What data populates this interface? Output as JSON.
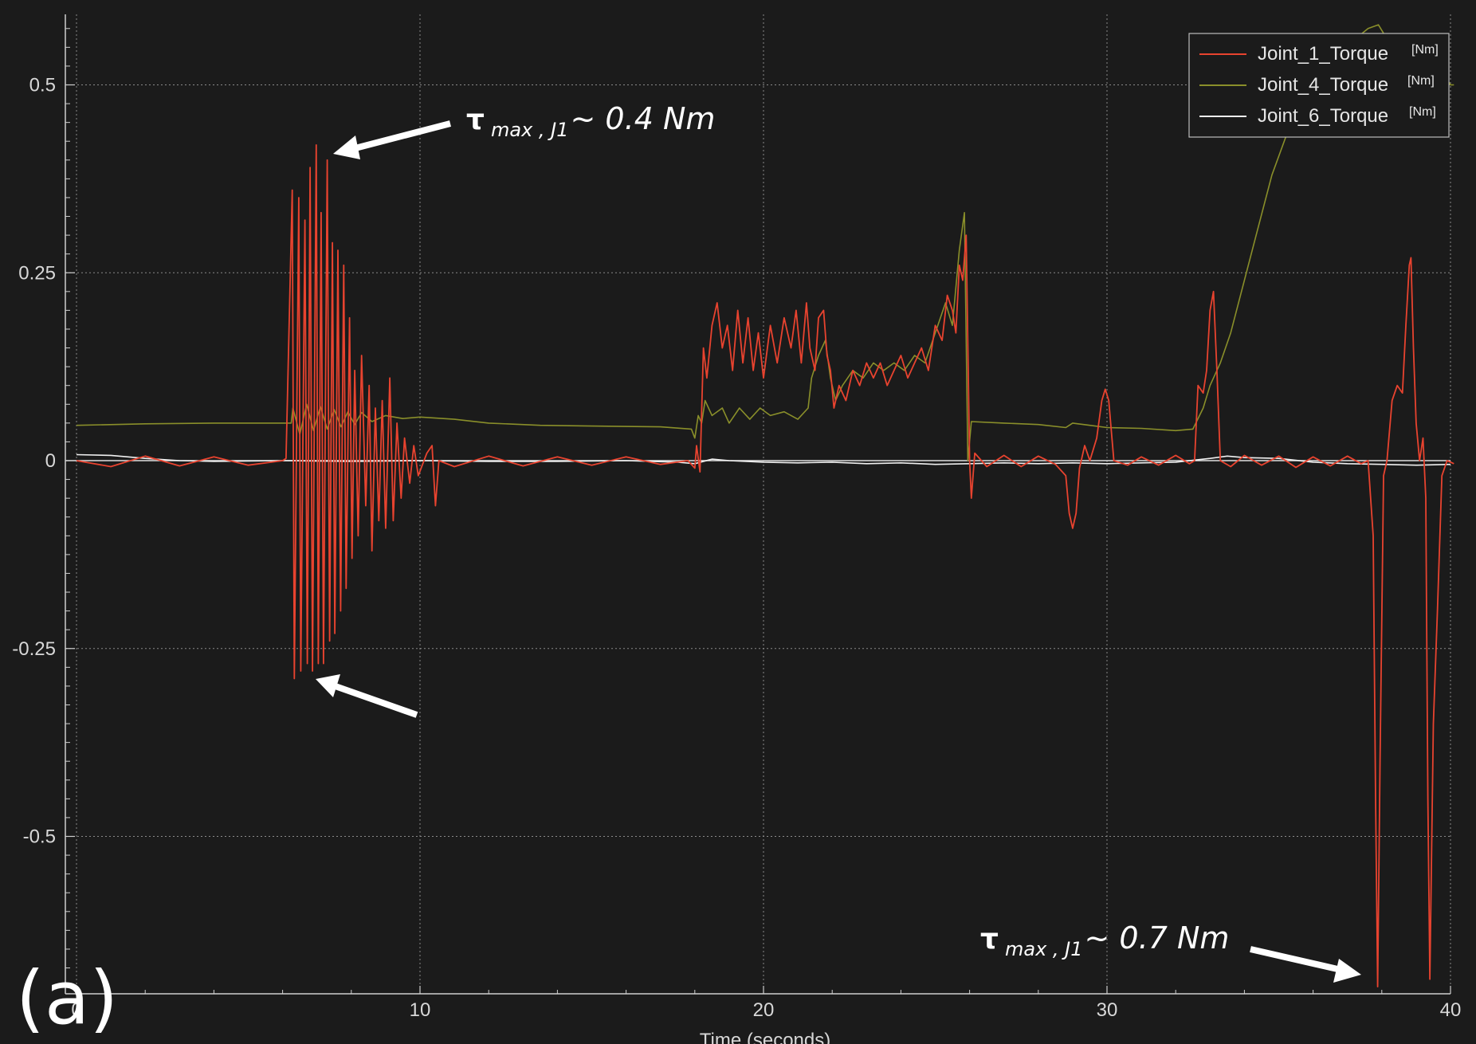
{
  "chart_data": {
    "type": "line",
    "xlabel": "Time (seconds)",
    "xlim": [
      -0.4,
      40.6
    ],
    "ylim": [
      -0.7,
      0.59
    ],
    "x_ticks": [
      0,
      10,
      20,
      30,
      40
    ],
    "x_tick_labels": [
      "0",
      "10",
      "20",
      "30",
      "40"
    ],
    "y_ticks": [
      0.5,
      0.25,
      0,
      -0.25,
      -0.5
    ],
    "y_tick_labels": [
      "0.5",
      "0.25",
      "0",
      "-0.25",
      "-0.5"
    ],
    "grid": true,
    "legend_position": "top-right",
    "series": [
      {
        "name": "Joint_1_Torque",
        "unit": "[Nm]",
        "color": "#e8432f",
        "points": [
          [
            0,
            0.0
          ],
          [
            1,
            -0.008
          ],
          [
            2,
            0.006
          ],
          [
            3,
            -0.007
          ],
          [
            4,
            0.005
          ],
          [
            5,
            -0.006
          ],
          [
            6,
            0.0
          ],
          [
            6.1,
            0.003
          ],
          [
            6.28,
            0.36
          ],
          [
            6.34,
            -0.29
          ],
          [
            6.47,
            0.35
          ],
          [
            6.53,
            -0.28
          ],
          [
            6.65,
            0.32
          ],
          [
            6.72,
            -0.27
          ],
          [
            6.8,
            0.39
          ],
          [
            6.87,
            -0.28
          ],
          [
            6.98,
            0.42
          ],
          [
            7.04,
            -0.27
          ],
          [
            7.12,
            0.33
          ],
          [
            7.19,
            -0.27
          ],
          [
            7.3,
            0.4
          ],
          [
            7.37,
            -0.24
          ],
          [
            7.45,
            0.29
          ],
          [
            7.52,
            -0.23
          ],
          [
            7.61,
            0.28
          ],
          [
            7.69,
            -0.2
          ],
          [
            7.78,
            0.26
          ],
          [
            7.85,
            -0.17
          ],
          [
            7.95,
            0.19
          ],
          [
            8.02,
            -0.13
          ],
          [
            8.1,
            0.12
          ],
          [
            8.2,
            -0.1
          ],
          [
            8.3,
            0.14
          ],
          [
            8.42,
            -0.06
          ],
          [
            8.52,
            0.1
          ],
          [
            8.6,
            -0.12
          ],
          [
            8.7,
            0.07
          ],
          [
            8.8,
            -0.08
          ],
          [
            8.9,
            0.08
          ],
          [
            9.0,
            -0.09
          ],
          [
            9.12,
            0.11
          ],
          [
            9.22,
            -0.08
          ],
          [
            9.33,
            0.05
          ],
          [
            9.45,
            -0.05
          ],
          [
            9.55,
            0.03
          ],
          [
            9.7,
            -0.03
          ],
          [
            9.82,
            0.02
          ],
          [
            9.95,
            -0.02
          ],
          [
            10.2,
            0.01
          ],
          [
            10.35,
            0.02
          ],
          [
            10.45,
            -0.06
          ],
          [
            10.55,
            0.0
          ],
          [
            11,
            -0.008
          ],
          [
            12,
            0.006
          ],
          [
            13,
            -0.007
          ],
          [
            14,
            0.005
          ],
          [
            15,
            -0.006
          ],
          [
            16,
            0.005
          ],
          [
            17,
            -0.005
          ],
          [
            17.8,
            0.0
          ],
          [
            18.0,
            -0.01
          ],
          [
            18.05,
            0.02
          ],
          [
            18.15,
            -0.015
          ],
          [
            18.25,
            0.15
          ],
          [
            18.35,
            0.11
          ],
          [
            18.5,
            0.18
          ],
          [
            18.65,
            0.21
          ],
          [
            18.8,
            0.15
          ],
          [
            18.95,
            0.18
          ],
          [
            19.1,
            0.12
          ],
          [
            19.25,
            0.2
          ],
          [
            19.4,
            0.13
          ],
          [
            19.55,
            0.19
          ],
          [
            19.7,
            0.12
          ],
          [
            19.85,
            0.17
          ],
          [
            20.0,
            0.11
          ],
          [
            20.2,
            0.18
          ],
          [
            20.4,
            0.13
          ],
          [
            20.6,
            0.19
          ],
          [
            20.8,
            0.15
          ],
          [
            20.95,
            0.2
          ],
          [
            21.1,
            0.13
          ],
          [
            21.25,
            0.21
          ],
          [
            21.35,
            0.15
          ],
          [
            21.5,
            0.12
          ],
          [
            21.6,
            0.19
          ],
          [
            21.75,
            0.2
          ],
          [
            21.85,
            0.14
          ],
          [
            21.95,
            0.12
          ],
          [
            22.05,
            0.07
          ],
          [
            22.2,
            0.1
          ],
          [
            22.4,
            0.08
          ],
          [
            22.6,
            0.12
          ],
          [
            22.8,
            0.1
          ],
          [
            23.0,
            0.13
          ],
          [
            23.2,
            0.11
          ],
          [
            23.4,
            0.13
          ],
          [
            23.6,
            0.1
          ],
          [
            23.8,
            0.12
          ],
          [
            24.0,
            0.14
          ],
          [
            24.2,
            0.11
          ],
          [
            24.4,
            0.13
          ],
          [
            24.6,
            0.15
          ],
          [
            24.8,
            0.12
          ],
          [
            25.0,
            0.18
          ],
          [
            25.2,
            0.16
          ],
          [
            25.35,
            0.22
          ],
          [
            25.5,
            0.2
          ],
          [
            25.6,
            0.17
          ],
          [
            25.7,
            0.26
          ],
          [
            25.8,
            0.24
          ],
          [
            25.9,
            0.3
          ],
          [
            26.0,
            0.0
          ],
          [
            26.05,
            -0.05
          ],
          [
            26.15,
            0.01
          ],
          [
            26.5,
            -0.008
          ],
          [
            27,
            0.007
          ],
          [
            27.5,
            -0.008
          ],
          [
            28,
            0.006
          ],
          [
            28.5,
            -0.005
          ],
          [
            28.8,
            -0.02
          ],
          [
            28.9,
            -0.07
          ],
          [
            29.0,
            -0.09
          ],
          [
            29.1,
            -0.07
          ],
          [
            29.2,
            -0.01
          ],
          [
            29.35,
            0.02
          ],
          [
            29.5,
            0.0
          ],
          [
            29.7,
            0.03
          ],
          [
            29.85,
            0.08
          ],
          [
            29.95,
            0.095
          ],
          [
            30.05,
            0.08
          ],
          [
            30.2,
            0.0
          ],
          [
            30.6,
            -0.006
          ],
          [
            31,
            0.005
          ],
          [
            31.5,
            -0.006
          ],
          [
            32,
            0.007
          ],
          [
            32.4,
            -0.004
          ],
          [
            32.55,
            0.0
          ],
          [
            32.65,
            0.1
          ],
          [
            32.8,
            0.09
          ],
          [
            32.9,
            0.12
          ],
          [
            33.0,
            0.2
          ],
          [
            33.1,
            0.225
          ],
          [
            33.2,
            0.12
          ],
          [
            33.3,
            0.0
          ],
          [
            33.6,
            -0.008
          ],
          [
            34,
            0.007
          ],
          [
            34.5,
            -0.006
          ],
          [
            35,
            0.006
          ],
          [
            35.5,
            -0.009
          ],
          [
            36,
            0.005
          ],
          [
            36.5,
            -0.007
          ],
          [
            37,
            0.006
          ],
          [
            37.4,
            -0.004
          ],
          [
            37.6,
            0.0
          ],
          [
            37.75,
            -0.1
          ],
          [
            37.82,
            -0.45
          ],
          [
            37.88,
            -0.7
          ],
          [
            37.95,
            -0.4
          ],
          [
            38.05,
            -0.02
          ],
          [
            38.15,
            0.0
          ],
          [
            38.3,
            0.08
          ],
          [
            38.45,
            0.1
          ],
          [
            38.6,
            0.09
          ],
          [
            38.7,
            0.18
          ],
          [
            38.8,
            0.26
          ],
          [
            38.85,
            0.27
          ],
          [
            38.92,
            0.15
          ],
          [
            39.0,
            0.05
          ],
          [
            39.1,
            0.0
          ],
          [
            39.2,
            0.03
          ],
          [
            39.28,
            -0.05
          ],
          [
            39.34,
            -0.45
          ],
          [
            39.4,
            -0.69
          ],
          [
            39.5,
            -0.35
          ],
          [
            39.62,
            -0.2
          ],
          [
            39.75,
            -0.02
          ],
          [
            39.9,
            0.0
          ],
          [
            40.1,
            -0.004
          ]
        ]
      },
      {
        "name": "Joint_4_Torque",
        "unit": "[Nm]",
        "color": "#8a8f2a",
        "points": [
          [
            0,
            0.047
          ],
          [
            2,
            0.049
          ],
          [
            4,
            0.05
          ],
          [
            6.25,
            0.05
          ],
          [
            6.3,
            0.07
          ],
          [
            6.5,
            0.035
          ],
          [
            6.7,
            0.075
          ],
          [
            6.9,
            0.04
          ],
          [
            7.1,
            0.072
          ],
          [
            7.3,
            0.042
          ],
          [
            7.5,
            0.068
          ],
          [
            7.7,
            0.045
          ],
          [
            7.9,
            0.065
          ],
          [
            8.1,
            0.048
          ],
          [
            8.3,
            0.064
          ],
          [
            8.6,
            0.052
          ],
          [
            9.0,
            0.06
          ],
          [
            9.5,
            0.056
          ],
          [
            10,
            0.058
          ],
          [
            11,
            0.055
          ],
          [
            12,
            0.05
          ],
          [
            13.5,
            0.047
          ],
          [
            15,
            0.046
          ],
          [
            17,
            0.045
          ],
          [
            17.9,
            0.042
          ],
          [
            18.0,
            0.03
          ],
          [
            18.1,
            0.06
          ],
          [
            18.2,
            0.05
          ],
          [
            18.3,
            0.08
          ],
          [
            18.5,
            0.06
          ],
          [
            18.8,
            0.07
          ],
          [
            19.0,
            0.05
          ],
          [
            19.3,
            0.07
          ],
          [
            19.6,
            0.055
          ],
          [
            19.9,
            0.07
          ],
          [
            20.2,
            0.06
          ],
          [
            20.6,
            0.065
          ],
          [
            21.0,
            0.055
          ],
          [
            21.3,
            0.07
          ],
          [
            21.4,
            0.11
          ],
          [
            21.6,
            0.14
          ],
          [
            21.8,
            0.16
          ],
          [
            21.95,
            0.11
          ],
          [
            22.1,
            0.08
          ],
          [
            22.3,
            0.1
          ],
          [
            22.6,
            0.12
          ],
          [
            22.9,
            0.11
          ],
          [
            23.2,
            0.13
          ],
          [
            23.5,
            0.12
          ],
          [
            23.8,
            0.13
          ],
          [
            24.1,
            0.12
          ],
          [
            24.4,
            0.14
          ],
          [
            24.7,
            0.13
          ],
          [
            25.0,
            0.17
          ],
          [
            25.3,
            0.21
          ],
          [
            25.5,
            0.18
          ],
          [
            25.7,
            0.28
          ],
          [
            25.85,
            0.33
          ],
          [
            25.95,
            0.0
          ],
          [
            26.05,
            0.052
          ],
          [
            27,
            0.05
          ],
          [
            28,
            0.048
          ],
          [
            28.8,
            0.044
          ],
          [
            29.0,
            0.05
          ],
          [
            29.5,
            0.047
          ],
          [
            30,
            0.044
          ],
          [
            31,
            0.043
          ],
          [
            32,
            0.04
          ],
          [
            32.5,
            0.042
          ],
          [
            32.8,
            0.07
          ],
          [
            33.0,
            0.1
          ],
          [
            33.3,
            0.13
          ],
          [
            33.6,
            0.17
          ],
          [
            34.0,
            0.24
          ],
          [
            34.4,
            0.31
          ],
          [
            34.8,
            0.38
          ],
          [
            35.2,
            0.43
          ],
          [
            35.6,
            0.47
          ],
          [
            36.0,
            0.5
          ],
          [
            36.4,
            0.52
          ],
          [
            36.8,
            0.54
          ],
          [
            37.2,
            0.56
          ],
          [
            37.6,
            0.575
          ],
          [
            37.9,
            0.58
          ],
          [
            38.1,
            0.565
          ],
          [
            38.4,
            0.548
          ],
          [
            38.8,
            0.54
          ],
          [
            39.2,
            0.535
          ],
          [
            39.6,
            0.53
          ],
          [
            40.0,
            0.5
          ],
          [
            40.1,
            0.5
          ]
        ]
      },
      {
        "name": "Joint_6_Torque",
        "unit": "[Nm]",
        "color": "#f0f0f0",
        "points": [
          [
            0,
            0.008
          ],
          [
            1,
            0.007
          ],
          [
            2,
            0.003
          ],
          [
            3,
            0.0
          ],
          [
            4,
            -0.001
          ],
          [
            6,
            0.0
          ],
          [
            8,
            -0.001
          ],
          [
            10,
            0.0
          ],
          [
            12,
            -0.001
          ],
          [
            14,
            -0.001
          ],
          [
            16,
            0.0
          ],
          [
            17.5,
            -0.002
          ],
          [
            18.0,
            -0.004
          ],
          [
            18.5,
            0.002
          ],
          [
            19,
            0.0
          ],
          [
            20,
            -0.002
          ],
          [
            21,
            -0.003
          ],
          [
            22,
            -0.002
          ],
          [
            23,
            -0.004
          ],
          [
            24,
            -0.003
          ],
          [
            25,
            -0.005
          ],
          [
            26,
            -0.004
          ],
          [
            27,
            -0.003
          ],
          [
            28,
            -0.004
          ],
          [
            29,
            -0.003
          ],
          [
            30,
            -0.004
          ],
          [
            31,
            -0.003
          ],
          [
            32,
            -0.002
          ],
          [
            33,
            0.003
          ],
          [
            33.5,
            0.006
          ],
          [
            34,
            0.004
          ],
          [
            35,
            0.003
          ],
          [
            36,
            -0.002
          ],
          [
            37,
            -0.004
          ],
          [
            38,
            -0.005
          ],
          [
            39,
            -0.006
          ],
          [
            40,
            -0.005
          ]
        ]
      }
    ]
  },
  "annotations": {
    "top_tau": "τ",
    "top_sub": "max , J1",
    "top_value": "~ 0.4 Nm",
    "bottom_tau": "τ",
    "bottom_sub": "max , J1",
    "bottom_value": "~ 0.7 Nm"
  },
  "panel_label": "(a)",
  "colors": {
    "background": "#1b1b1b",
    "grid": "#8a8a8a",
    "axis": "#cfcfcf",
    "annotation": "#ffffff"
  }
}
